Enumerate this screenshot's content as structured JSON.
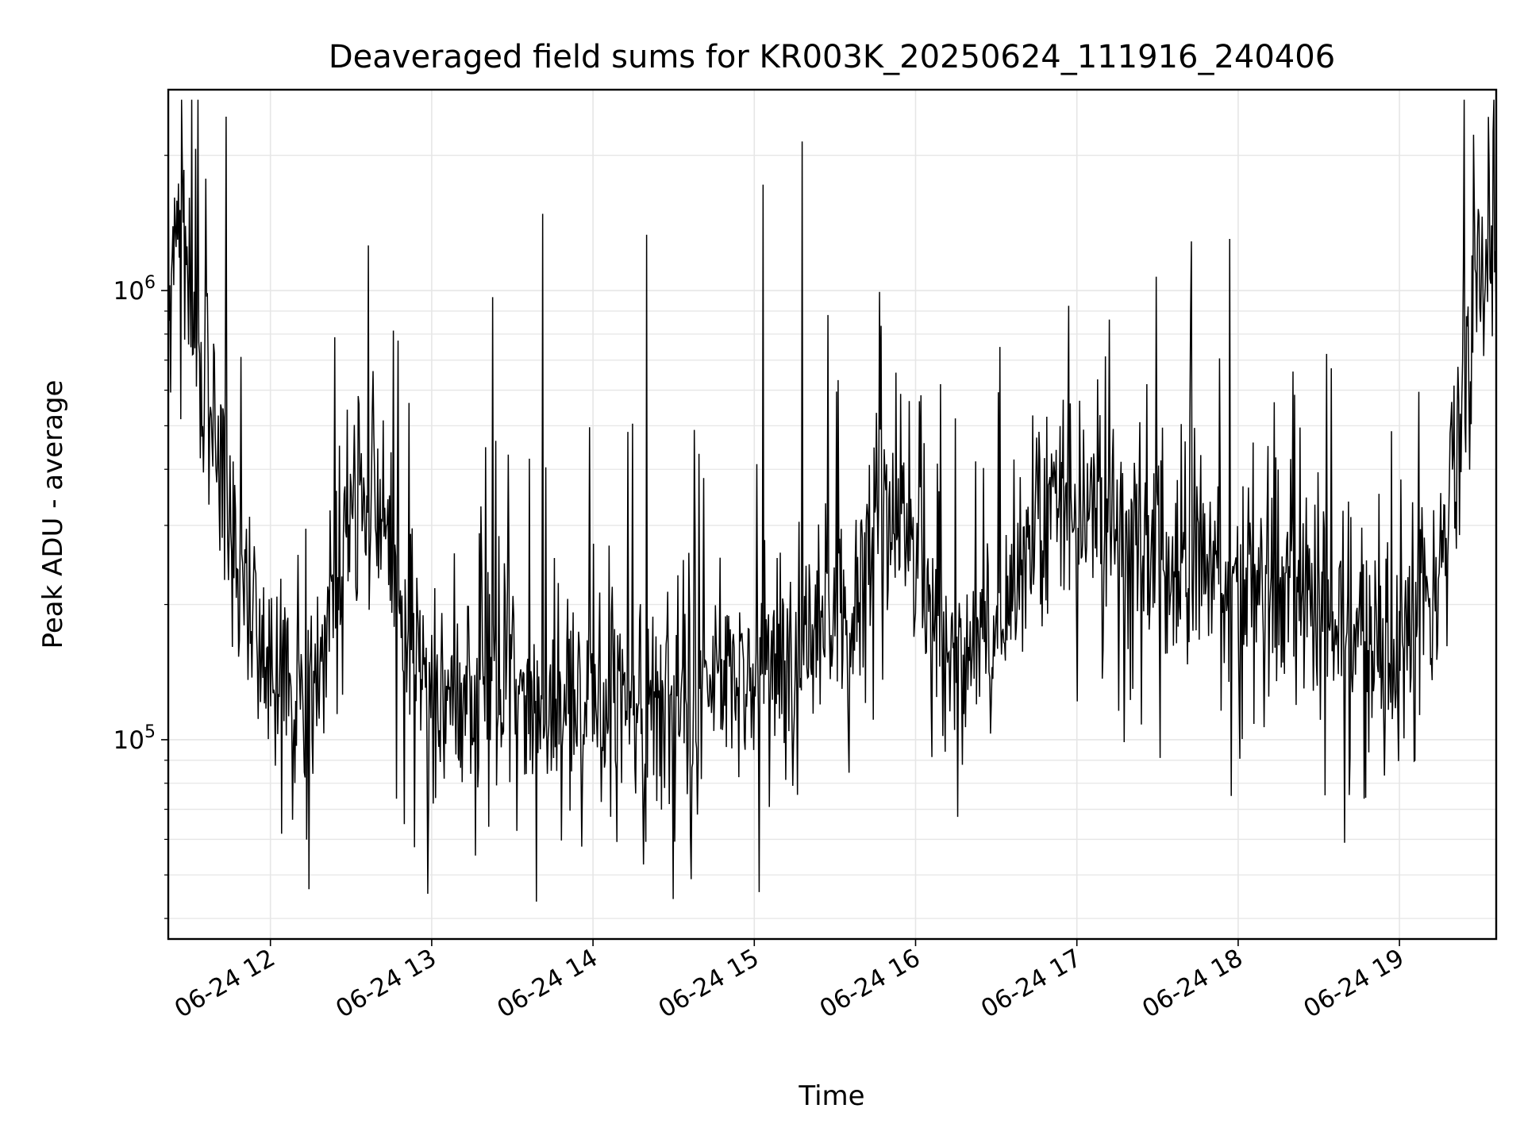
{
  "chart_data": {
    "type": "line",
    "title": "Deaveraged field sums for KR003K_20250624_111916_240406",
    "xlabel": "Time",
    "ylabel": "Peak ADU - average",
    "x_start": "06-24 11:22",
    "x_end": "06-24 19:36",
    "x_ticks": [
      "06-24 12",
      "06-24 13",
      "06-24 14",
      "06-24 15",
      "06-24 16",
      "06-24 17",
      "06-24 18",
      "06-24 19"
    ],
    "y_scale": "log",
    "ylim": [
      36000,
      2800000
    ],
    "y_ticks": [
      {
        "base": "10",
        "exp": "5",
        "value": 100000
      },
      {
        "base": "10",
        "exp": "6",
        "value": 1000000
      }
    ],
    "grid": true,
    "line_color": "#000000",
    "series": [
      {
        "values": [
          900000,
          1300000,
          1100000,
          750000,
          520000,
          420000,
          340000,
          260000,
          210000,
          190000,
          170000,
          150000,
          135000,
          125000,
          120000,
          135000,
          170000,
          230000,
          300000,
          340000,
          360000,
          330000,
          290000,
          240000,
          190000,
          160000,
          140000,
          128000,
          122000,
          118000,
          120000,
          125000,
          130000,
          132000,
          128000,
          124000,
          121000,
          118000,
          116000,
          115000,
          117000,
          120000,
          124000,
          128000,
          130000,
          128000,
          125000,
          123000,
          121000,
          120000,
          121000,
          124000,
          128000,
          133000,
          137000,
          140000,
          142000,
          143000,
          143000,
          142000,
          142000,
          143000,
          145000,
          148000,
          152000,
          158000,
          165000,
          172000,
          178000,
          185000,
          200000,
          240000,
          300000,
          340000,
          330000,
          290000,
          240000,
          200000,
          180000,
          170000,
          165000,
          162000,
          160000,
          162000,
          170000,
          185000,
          205000,
          230000,
          260000,
          290000,
          320000,
          340000,
          350000,
          345000,
          335000,
          325000,
          315000,
          305000,
          295000,
          285000,
          275000,
          265000,
          255000,
          248000,
          242000,
          238000,
          235000,
          233000,
          232000,
          232000,
          231000,
          229000,
          226000,
          222000,
          217000,
          211000,
          204000,
          196000,
          188000,
          180000,
          172000,
          165000,
          160000,
          157000,
          156000,
          158000,
          163000,
          172000,
          190000,
          225000,
          290000,
          430000,
          700000,
          1050000,
          1300000,
          1250000
        ]
      }
    ]
  }
}
